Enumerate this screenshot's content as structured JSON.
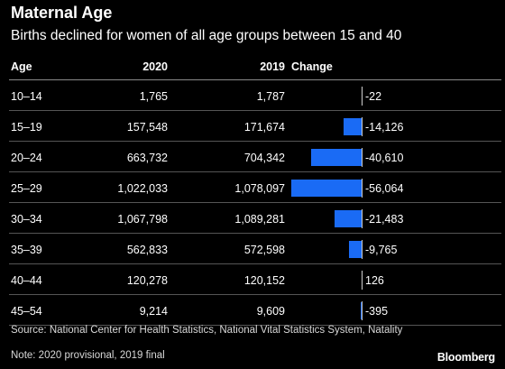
{
  "title": "Maternal Age",
  "subtitle": "Births declined for women of all age groups between 15 and 40",
  "columns": {
    "age": "Age",
    "y2020": "2020",
    "y2019": "2019",
    "change": "Change"
  },
  "chart_data": {
    "type": "table",
    "title": "Maternal Age",
    "subtitle": "Births declined for women of all age groups between 15 and 40",
    "columns": [
      "Age",
      "2020",
      "2019",
      "Change"
    ],
    "bar_color": "#1a6bf5",
    "rows": [
      {
        "age": "10–14",
        "y2020": "1,765",
        "y2019": "1,787",
        "change_label": "-22",
        "change": -22
      },
      {
        "age": "15–19",
        "y2020": "157,548",
        "y2019": "171,674",
        "change_label": "-14,126",
        "change": -14126
      },
      {
        "age": "20–24",
        "y2020": "663,732",
        "y2019": "704,342",
        "change_label": "-40,610",
        "change": -40610
      },
      {
        "age": "25–29",
        "y2020": "1,022,033",
        "y2019": "1,078,097",
        "change_label": "-56,064",
        "change": -56064
      },
      {
        "age": "30–34",
        "y2020": "1,067,798",
        "y2019": "1,089,281",
        "change_label": "-21,483",
        "change": -21483
      },
      {
        "age": "35–39",
        "y2020": "562,833",
        "y2019": "572,598",
        "change_label": "-9,765",
        "change": -9765
      },
      {
        "age": "40–44",
        "y2020": "120,278",
        "y2019": "120,152",
        "change_label": "126",
        "change": 126
      },
      {
        "age": "45–54",
        "y2020": "9,214",
        "y2019": "9,609",
        "change_label": "-395",
        "change": -395
      }
    ]
  },
  "source": "Source: National Center for Health Statistics, National Vital Statistics System, Natality",
  "note": "Note: 2020 provisional, 2019 final",
  "logo": "Bloomberg"
}
